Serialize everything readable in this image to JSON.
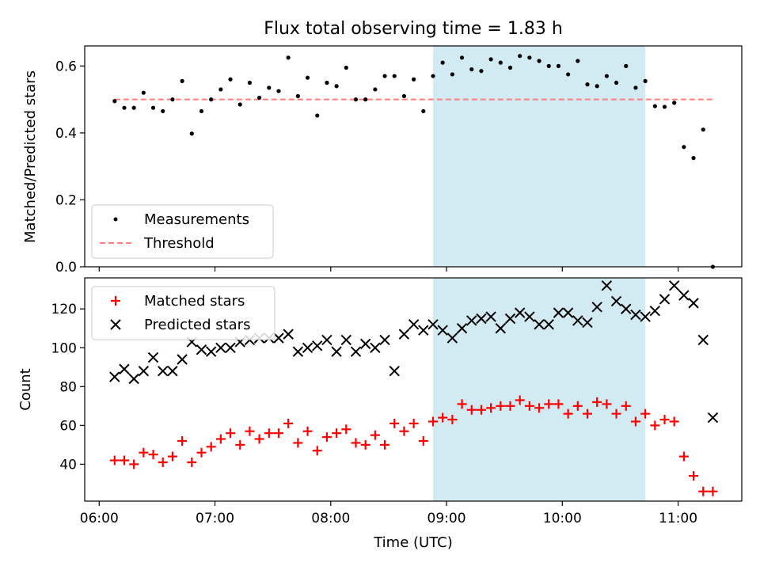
{
  "title": "Flux total observing time = 1.83 h",
  "xlabel": "Time (UTC)",
  "x_tick_labels": [
    "06:00",
    "07:00",
    "08:00",
    "09:00",
    "10:00",
    "11:00"
  ],
  "top_legend": {
    "measurements": "Measurements",
    "threshold": "Threshold"
  },
  "bottom_legend": {
    "matched": "Matched stars",
    "predicted": "Predicted stars"
  },
  "colors": {
    "measurement": "#000000",
    "threshold": "#ff7f7f",
    "matched": "#ff0000",
    "predicted": "#000000",
    "highlight": "#add8e6"
  },
  "chart_data": [
    {
      "type": "scatter",
      "title": "Flux total observing time = 1.83 h",
      "xlabel": "",
      "ylabel": "Matched/Predicted stars",
      "x_unit": "time of day (UTC)",
      "ylim": [
        0.0,
        0.66
      ],
      "y_ticks": [
        0.0,
        0.2,
        0.4,
        0.6
      ],
      "y_tick_labels": [
        "0.0",
        "0.2",
        "0.4",
        "0.6"
      ],
      "grid": false,
      "legend_position": "lower-left",
      "highlight_span": [
        "08:53",
        "10:43"
      ],
      "threshold": {
        "name": "Threshold",
        "value": 0.5,
        "x_range": [
          "06:08",
          "11:18"
        ]
      },
      "series": [
        {
          "name": "Measurements",
          "x": [
            "06:08",
            "06:13",
            "06:18",
            "06:23",
            "06:28",
            "06:33",
            "06:38",
            "06:43",
            "06:48",
            "06:53",
            "06:58",
            "07:03",
            "07:08",
            "07:13",
            "07:18",
            "07:23",
            "07:28",
            "07:33",
            "07:38",
            "07:43",
            "07:48",
            "07:53",
            "07:58",
            "08:03",
            "08:08",
            "08:13",
            "08:18",
            "08:23",
            "08:28",
            "08:33",
            "08:38",
            "08:43",
            "08:48",
            "08:53",
            "08:58",
            "09:03",
            "09:08",
            "09:13",
            "09:18",
            "09:23",
            "09:28",
            "09:33",
            "09:38",
            "09:43",
            "09:48",
            "09:53",
            "09:58",
            "10:03",
            "10:08",
            "10:13",
            "10:18",
            "10:23",
            "10:28",
            "10:33",
            "10:38",
            "10:43",
            "10:48",
            "10:53",
            "10:58",
            "11:03",
            "11:08",
            "11:13",
            "11:18"
          ],
          "y": [
            0.495,
            0.475,
            0.475,
            0.52,
            0.475,
            0.465,
            0.5,
            0.555,
            0.398,
            0.465,
            0.5,
            0.53,
            0.56,
            0.485,
            0.55,
            0.505,
            0.535,
            0.525,
            0.625,
            0.51,
            0.565,
            0.452,
            0.55,
            0.54,
            0.595,
            0.5,
            0.5,
            0.53,
            0.57,
            0.57,
            0.51,
            0.56,
            0.465,
            0.57,
            0.61,
            0.575,
            0.625,
            0.59,
            0.585,
            0.62,
            0.61,
            0.595,
            0.63,
            0.625,
            0.615,
            0.6,
            0.6,
            0.575,
            0.615,
            0.545,
            0.54,
            0.57,
            0.55,
            0.6,
            0.535,
            0.555,
            0.48,
            0.478,
            0.49,
            0.358,
            0.325,
            0.41,
            0.0
          ]
        }
      ]
    },
    {
      "type": "scatter",
      "title": "",
      "xlabel": "Time (UTC)",
      "ylabel": "Count",
      "x_unit": "time of day (UTC)",
      "ylim": [
        21,
        136
      ],
      "y_ticks": [
        40,
        60,
        80,
        100,
        120
      ],
      "y_tick_labels": [
        "40",
        "60",
        "80",
        "100",
        "120"
      ],
      "grid": false,
      "legend_position": "upper-left",
      "highlight_span": [
        "08:53",
        "10:43"
      ],
      "series": [
        {
          "name": "Matched stars",
          "marker": "plus",
          "x": [
            "06:08",
            "06:13",
            "06:18",
            "06:23",
            "06:28",
            "06:33",
            "06:38",
            "06:43",
            "06:48",
            "06:53",
            "06:58",
            "07:03",
            "07:08",
            "07:13",
            "07:18",
            "07:23",
            "07:28",
            "07:33",
            "07:38",
            "07:43",
            "07:48",
            "07:53",
            "07:58",
            "08:03",
            "08:08",
            "08:13",
            "08:18",
            "08:23",
            "08:28",
            "08:33",
            "08:38",
            "08:43",
            "08:48",
            "08:53",
            "08:58",
            "09:03",
            "09:08",
            "09:13",
            "09:18",
            "09:23",
            "09:28",
            "09:33",
            "09:38",
            "09:43",
            "09:48",
            "09:53",
            "09:58",
            "10:03",
            "10:08",
            "10:13",
            "10:18",
            "10:23",
            "10:28",
            "10:33",
            "10:38",
            "10:43",
            "10:48",
            "10:53",
            "10:58",
            "11:03",
            "11:08",
            "11:13",
            "11:18"
          ],
          "y": [
            42,
            42,
            40,
            46,
            45,
            41,
            44,
            52,
            41,
            46,
            49,
            53,
            56,
            50,
            57,
            53,
            56,
            56,
            61,
            51,
            57,
            47,
            54,
            56,
            58,
            51,
            50,
            55,
            50,
            61,
            57,
            61,
            52,
            62,
            64,
            63,
            71,
            68,
            68,
            69,
            70,
            70,
            73,
            70,
            69,
            71,
            71,
            66,
            70,
            66,
            72,
            71,
            66,
            70,
            62,
            66,
            60,
            63,
            62,
            44,
            34,
            26,
            26
          ]
        },
        {
          "name": "Predicted stars",
          "marker": "x",
          "x": [
            "06:08",
            "06:13",
            "06:18",
            "06:23",
            "06:28",
            "06:33",
            "06:38",
            "06:43",
            "06:48",
            "06:53",
            "06:58",
            "07:03",
            "07:08",
            "07:13",
            "07:18",
            "07:23",
            "07:28",
            "07:33",
            "07:38",
            "07:43",
            "07:48",
            "07:53",
            "07:58",
            "08:03",
            "08:08",
            "08:13",
            "08:18",
            "08:23",
            "08:28",
            "08:33",
            "08:38",
            "08:43",
            "08:48",
            "08:53",
            "08:58",
            "09:03",
            "09:08",
            "09:13",
            "09:18",
            "09:23",
            "09:28",
            "09:33",
            "09:38",
            "09:43",
            "09:48",
            "09:53",
            "09:58",
            "10:03",
            "10:08",
            "10:13",
            "10:18",
            "10:23",
            "10:28",
            "10:33",
            "10:38",
            "10:43",
            "10:48",
            "10:53",
            "10:58",
            "11:03",
            "11:08",
            "11:13",
            "11:18"
          ],
          "y": [
            85,
            89,
            84,
            88,
            95,
            88,
            88,
            94,
            103,
            99,
            98,
            100,
            100,
            103,
            104,
            105,
            105,
            105,
            107,
            98,
            100,
            101,
            104,
            98,
            104,
            98,
            102,
            100,
            104,
            88,
            107,
            112,
            109,
            112,
            109,
            105,
            110,
            114,
            115,
            116,
            110,
            115,
            118,
            116,
            112,
            112,
            118,
            118,
            114,
            113,
            121,
            132,
            124,
            120,
            117,
            116,
            119,
            125,
            132,
            127,
            123,
            104,
            64
          ]
        }
      ]
    }
  ]
}
